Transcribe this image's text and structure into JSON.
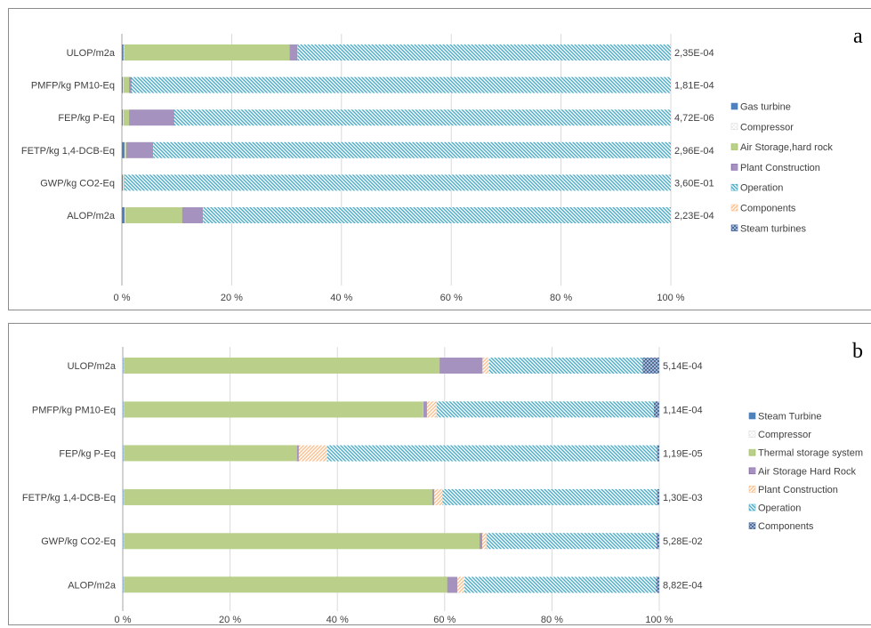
{
  "chart_data": [
    {
      "id": "a",
      "type": "bar",
      "orientation": "horizontal",
      "stacked": "percent",
      "panel_label": "a",
      "categories": [
        "ULOP/m2a",
        "PMFP/kg PM10-Eq",
        "FEP/kg P-Eq",
        "FETP/kg 1,4-DCB-Eq",
        "GWP/kg CO2-Eq",
        "ALOP/m2a"
      ],
      "totals": [
        "2,35E-04",
        "1,81E-04",
        "4,72E-06",
        "2,96E-04",
        "3,60E-01",
        "2,23E-04"
      ],
      "x_ticks": [
        "0 %",
        "20 %",
        "40 %",
        "60 %",
        "80 %",
        "100 %"
      ],
      "xlim": [
        0,
        100
      ],
      "legend_position": "right",
      "series": [
        {
          "name": "Gas turbine",
          "color": "#4f81bd",
          "pattern": "solid",
          "values": [
            0.3,
            0.2,
            0.2,
            0.5,
            0.2,
            0.5
          ]
        },
        {
          "name": "Compressor",
          "color": "#d9d9d9",
          "pattern": "dots",
          "values": [
            0.1,
            0.1,
            0.1,
            0.1,
            0.1,
            0.1
          ]
        },
        {
          "name": "Air Storage,hard rock",
          "color": "#9bbb59",
          "pattern": "horizontal",
          "values": [
            30.1,
            1.0,
            1.0,
            0.3,
            0.1,
            10.4
          ]
        },
        {
          "name": "Plant Construction",
          "color": "#8064a2",
          "pattern": "vertical",
          "values": [
            1.5,
            0.4,
            8.2,
            4.8,
            0.1,
            3.8
          ]
        },
        {
          "name": "Operation",
          "color": "#4bacc6",
          "pattern": "diagonal",
          "values": [
            68.0,
            98.3,
            90.5,
            94.3,
            99.5,
            85.2
          ]
        },
        {
          "name": "Components",
          "color": "#fac090",
          "pattern": "diagonal-up",
          "values": [
            0,
            0,
            0,
            0,
            0,
            0
          ]
        },
        {
          "name": "Steam turbines",
          "color": "#4f6f9f",
          "pattern": "cross",
          "values": [
            0,
            0,
            0,
            0,
            0,
            0
          ]
        }
      ]
    },
    {
      "id": "b",
      "type": "bar",
      "orientation": "horizontal",
      "stacked": "percent",
      "panel_label": "b",
      "categories": [
        "ULOP/m2a",
        "PMFP/kg PM10-Eq",
        "FEP/kg P-Eq",
        "FETP/kg 1,4-DCB-Eq",
        "GWP/kg CO2-Eq",
        "ALOP/m2a"
      ],
      "totals": [
        "5,14E-04",
        "1,14E-04",
        "1,19E-05",
        "1,30E-03",
        "5,28E-02",
        "8,82E-04"
      ],
      "x_ticks": [
        "0 %",
        "20 %",
        "40 %",
        "60 %",
        "80 %",
        "100 %"
      ],
      "xlim": [
        0,
        100
      ],
      "legend_position": "right",
      "series": [
        {
          "name": "Steam Turbine",
          "color": "#4f81bd",
          "pattern": "solid",
          "values": [
            0.1,
            0.1,
            0.1,
            0.1,
            0.1,
            0.1
          ]
        },
        {
          "name": "Compressor",
          "color": "#d9d9d9",
          "pattern": "dots",
          "values": [
            0.1,
            0.1,
            0.1,
            0.1,
            0.1,
            0.1
          ]
        },
        {
          "name": "Thermal storage system",
          "color": "#9bbb59",
          "pattern": "horizontal",
          "values": [
            58.9,
            55.8,
            32.2,
            57.6,
            66.3,
            60.3
          ]
        },
        {
          "name": "Air Storage Hard Rock",
          "color": "#8064a2",
          "pattern": "vertical",
          "values": [
            8.0,
            0.7,
            0.4,
            0.3,
            0.5,
            1.9
          ]
        },
        {
          "name": "Plant Construction",
          "color": "#fac090",
          "pattern": "diagonal-up",
          "values": [
            1.2,
            1.8,
            5.3,
            1.5,
            0.8,
            1.3
          ]
        },
        {
          "name": "Operation",
          "color": "#4bacc6",
          "pattern": "diagonal",
          "values": [
            28.6,
            40.5,
            61.5,
            40.0,
            31.7,
            35.7
          ]
        },
        {
          "name": "Components",
          "color": "#4f6f9f",
          "pattern": "cross",
          "values": [
            3.1,
            1.0,
            0.4,
            0.4,
            0.5,
            0.6
          ]
        }
      ]
    }
  ]
}
